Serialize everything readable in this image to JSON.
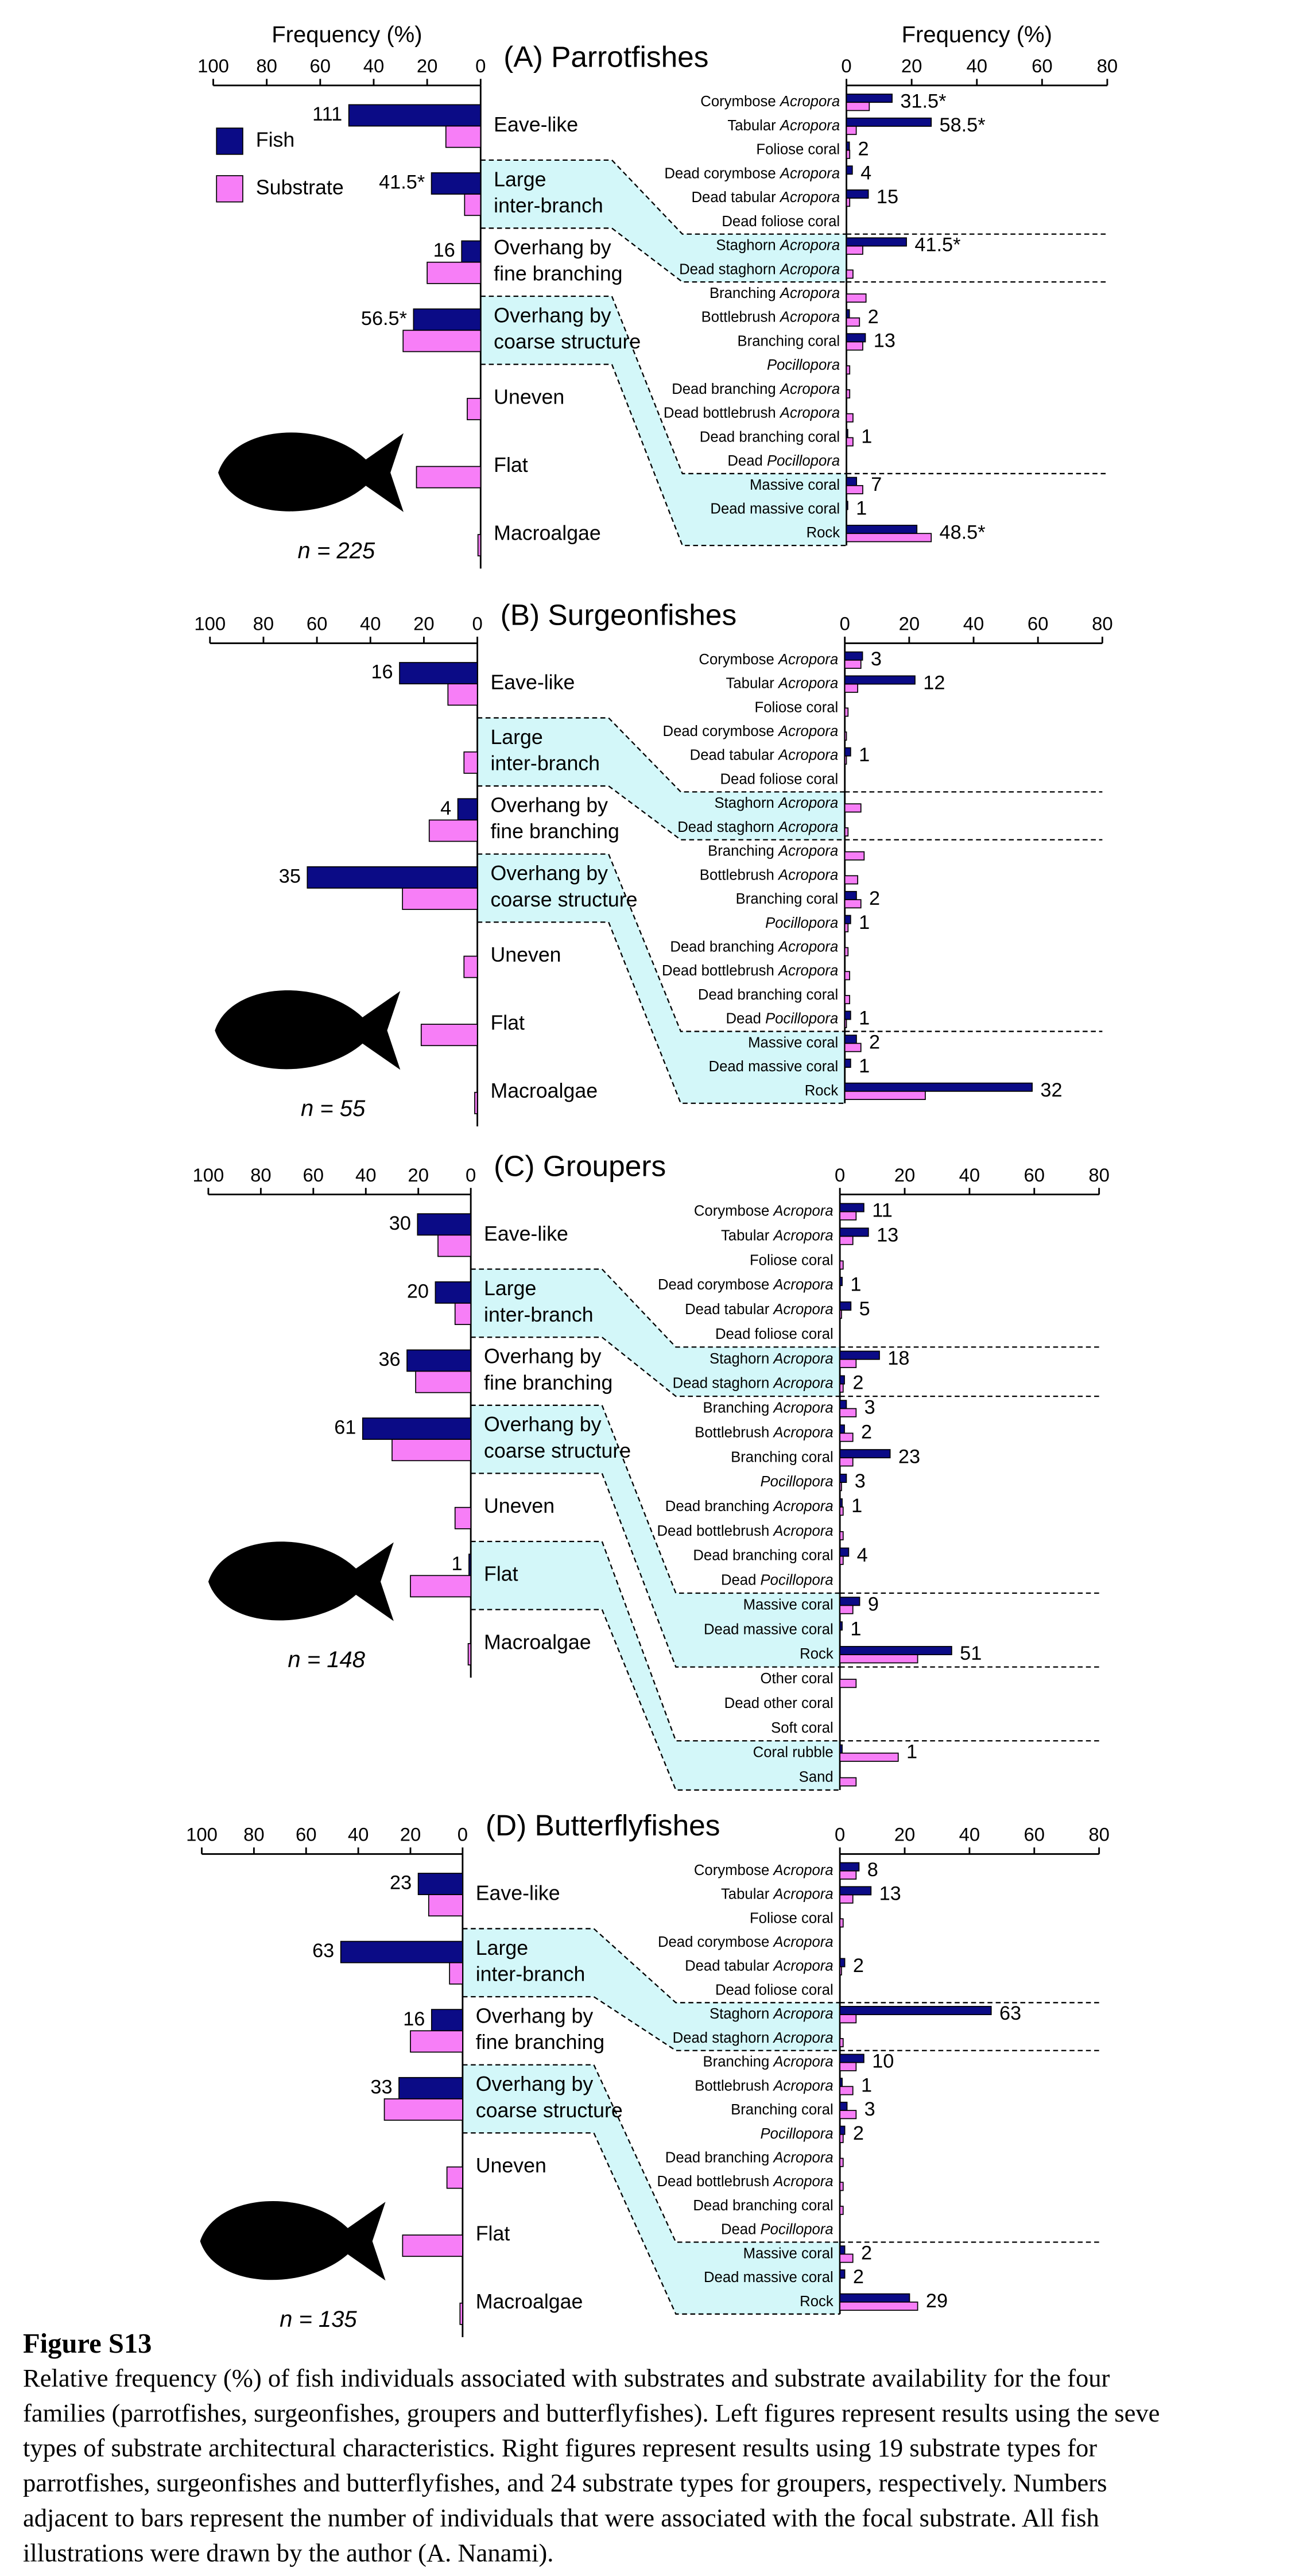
{
  "chart_data": [
    {
      "type": "bar",
      "orientation": "horizontal",
      "title": "(A) Parrotfishes",
      "xlabel": "Frequency (%)",
      "note": "n = 225",
      "legend": "upper left",
      "categories": [
        "Eave-like",
        "Large inter-branch",
        "Overhang by fine branching",
        "Overhang by coarse structure",
        "Uneven",
        "Flat",
        "Macroalgae"
      ],
      "series": [
        {
          "name": "Fish",
          "color": "#0b0b86",
          "values": [
            49.3,
            18.4,
            7.1,
            25.1,
            0,
            0,
            0
          ],
          "bar_labels": [
            "111",
            "41.5*",
            "16",
            "56.5*",
            null,
            null,
            null
          ]
        },
        {
          "name": "Substrate",
          "color": "#f77ef7",
          "values": [
            13,
            6,
            20,
            29,
            5,
            24,
            1
          ]
        }
      ],
      "xlim": [
        100,
        0
      ],
      "xticks": [
        100,
        80,
        60,
        40,
        20,
        0
      ]
    },
    {
      "type": "bar",
      "orientation": "horizontal",
      "xlabel": "Frequency (%)",
      "categories": [
        "Corymbose Acropora",
        "Tabular Acropora",
        "Foliose coral",
        "Dead corymbose Acropora",
        "Dead tabular Acropora",
        "Dead foliose coral",
        "Staghorn Acropora",
        "Dead staghorn Acropora",
        "Branching Acropora",
        "Bottlebrush Acropora",
        "Branching coral",
        "Pocillopora",
        "Dead branching Acropora",
        "Dead bottlebrush Acropora",
        "Dead branching coral",
        "Dead Pocillopora",
        "Massive coral",
        "Dead massive coral",
        "Rock"
      ],
      "series": [
        {
          "color": "#0b0b86",
          "values": [
            14,
            26,
            0.9,
            1.8,
            6.7,
            0,
            18.4,
            0,
            0,
            0.9,
            5.8,
            0,
            0,
            0,
            0.4,
            0,
            3.1,
            0.4,
            21.6
          ],
          "bar_labels": [
            "31.5*",
            "58.5*",
            "2",
            "4",
            "15",
            null,
            "41.5*",
            null,
            null,
            "2",
            "13",
            null,
            null,
            null,
            "1",
            null,
            "7",
            "1",
            "48.5*"
          ]
        },
        {
          "color": "#f77ef7",
          "values": [
            7,
            3,
            1,
            0,
            1,
            0,
            5,
            2,
            6,
            4,
            5,
            1,
            1,
            2,
            2,
            0,
            5,
            0,
            26
          ]
        }
      ],
      "xlim": [
        0,
        80
      ],
      "xticks": [
        0,
        20,
        40,
        60,
        80
      ]
    },
    {
      "type": "bar",
      "orientation": "horizontal",
      "title": "(B) Surgeonfishes",
      "note": "n = 55",
      "categories": [
        "Eave-like",
        "Large inter-branch",
        "Overhang by fine branching",
        "Overhang by coarse structure",
        "Uneven",
        "Flat",
        "Macroalgae"
      ],
      "series": [
        {
          "color": "#0b0b86",
          "values": [
            29.1,
            0,
            7.3,
            63.6,
            0,
            0,
            0
          ],
          "bar_labels": [
            "16",
            null,
            "4",
            "35",
            null,
            null,
            null
          ]
        },
        {
          "color": "#f77ef7",
          "values": [
            11,
            5,
            18,
            28,
            5,
            21,
            1
          ]
        }
      ],
      "xlim": [
        100,
        0
      ],
      "xticks": [
        100,
        80,
        60,
        40,
        20,
        0
      ]
    },
    {
      "type": "bar",
      "orientation": "horizontal",
      "categories": [
        "Corymbose Acropora",
        "Tabular Acropora",
        "Foliose coral",
        "Dead corymbose Acropora",
        "Dead tabular Acropora",
        "Dead foliose coral",
        "Staghorn Acropora",
        "Dead staghorn Acropora",
        "Branching Acropora",
        "Bottlebrush Acropora",
        "Branching coral",
        "Pocillopora",
        "Dead branching Acropora",
        "Dead bottlebrush Acropora",
        "Dead branching coral",
        "Dead Pocillopora",
        "Massive coral",
        "Dead massive coral",
        "Rock"
      ],
      "series": [
        {
          "color": "#0b0b86",
          "values": [
            5.5,
            21.8,
            0,
            0,
            1.8,
            0,
            0,
            0,
            0,
            0,
            3.6,
            1.8,
            0,
            0,
            0,
            1.8,
            3.6,
            1.8,
            58.2
          ],
          "bar_labels": [
            "3",
            "12",
            null,
            null,
            "1",
            null,
            null,
            null,
            null,
            null,
            "2",
            "1",
            null,
            null,
            null,
            "1",
            "2",
            "1",
            "32"
          ]
        },
        {
          "color": "#f77ef7",
          "values": [
            5,
            4,
            1,
            0.5,
            0.5,
            0,
            5,
            1,
            6,
            4,
            5,
            1,
            1,
            1.5,
            1.5,
            0.5,
            5,
            0,
            25
          ]
        }
      ],
      "xlim": [
        0,
        80
      ],
      "xticks": [
        0,
        20,
        40,
        60,
        80
      ]
    },
    {
      "type": "bar",
      "orientation": "horizontal",
      "title": "(C) Groupers",
      "note": "n = 148",
      "categories": [
        "Eave-like",
        "Large inter-branch",
        "Overhang by fine branching",
        "Overhang by coarse structure",
        "Uneven",
        "Flat",
        "Macroalgae"
      ],
      "series": [
        {
          "color": "#0b0b86",
          "values": [
            20.3,
            13.5,
            24.3,
            41.2,
            0,
            0.7,
            0
          ],
          "bar_labels": [
            "30",
            "20",
            "36",
            "61",
            null,
            "1",
            null
          ]
        },
        {
          "color": "#f77ef7",
          "values": [
            12.5,
            6,
            21,
            30,
            6,
            23,
            1
          ]
        }
      ],
      "xlim": [
        100,
        0
      ],
      "xticks": [
        100,
        80,
        60,
        40,
        20,
        0
      ]
    },
    {
      "type": "bar",
      "orientation": "horizontal",
      "categories": [
        "Corymbose Acropora",
        "Tabular Acropora",
        "Foliose coral",
        "Dead corymbose Acropora",
        "Dead tabular Acropora",
        "Dead foliose coral",
        "Staghorn Acropora",
        "Dead staghorn Acropora",
        "Branching Acropora",
        "Bottlebrush Acropora",
        "Branching coral",
        "Pocillopora",
        "Dead branching Acropora",
        "Dead bottlebrush Acropora",
        "Dead branching coral",
        "Dead Pocillopora",
        "Massive coral",
        "Dead massive coral",
        "Rock",
        "Other coral",
        "Dead other coral",
        "Soft coral",
        "Coral rubble",
        "Sand"
      ],
      "series": [
        {
          "color": "#0b0b86",
          "values": [
            7.4,
            8.8,
            0,
            0.7,
            3.4,
            0,
            12.2,
            1.4,
            2.0,
            1.4,
            15.5,
            2.0,
            0.7,
            0,
            2.7,
            0,
            6.1,
            0.7,
            34.5,
            0,
            0,
            0,
            0.7,
            0
          ],
          "bar_labels": [
            "11",
            "13",
            null,
            "1",
            "5",
            null,
            "18",
            "2",
            "3",
            "2",
            "23",
            "3",
            "1",
            null,
            "4",
            null,
            "9",
            "1",
            "51",
            null,
            null,
            null,
            "1",
            null
          ]
        },
        {
          "color": "#f77ef7",
          "values": [
            5,
            4,
            1,
            0,
            0.5,
            0,
            5,
            1,
            5,
            4,
            4,
            0.5,
            1,
            1,
            1,
            0,
            4,
            0,
            24,
            5,
            0,
            0,
            18,
            5
          ]
        }
      ],
      "xlim": [
        0,
        80
      ],
      "xticks": [
        0,
        20,
        40,
        60,
        80
      ]
    },
    {
      "type": "bar",
      "orientation": "horizontal",
      "title": "(D) Butterflyfishes",
      "note": "n = 135",
      "categories": [
        "Eave-like",
        "Large inter-branch",
        "Overhang by fine branching",
        "Overhang by coarse structure",
        "Uneven",
        "Flat",
        "Macroalgae"
      ],
      "series": [
        {
          "color": "#0b0b86",
          "values": [
            17,
            46.7,
            11.9,
            24.4,
            0,
            0,
            0
          ],
          "bar_labels": [
            "23",
            "63",
            "16",
            "33",
            null,
            null,
            null
          ]
        },
        {
          "color": "#f77ef7",
          "values": [
            13,
            5,
            20,
            30,
            6,
            23,
            1
          ]
        }
      ],
      "xlim": [
        100,
        0
      ],
      "xticks": [
        100,
        80,
        60,
        40,
        20,
        0
      ]
    },
    {
      "type": "bar",
      "orientation": "horizontal",
      "categories": [
        "Corymbose Acropora",
        "Tabular Acropora",
        "Foliose coral",
        "Dead corymbose Acropora",
        "Dead tabular Acropora",
        "Dead foliose coral",
        "Staghorn Acropora",
        "Dead staghorn Acropora",
        "Branching Acropora",
        "Bottlebrush Acropora",
        "Branching coral",
        "Pocillopora",
        "Dead branching Acropora",
        "Dead bottlebrush Acropora",
        "Dead branching coral",
        "Dead Pocillopora",
        "Massive coral",
        "Dead massive coral",
        "Rock"
      ],
      "series": [
        {
          "color": "#0b0b86",
          "values": [
            5.9,
            9.6,
            0,
            0,
            1.5,
            0,
            46.7,
            0,
            7.4,
            0.7,
            2.2,
            1.5,
            0,
            0,
            0,
            0,
            1.5,
            1.5,
            21.5
          ],
          "bar_labels": [
            "8",
            "13",
            null,
            null,
            "2",
            null,
            "63",
            null,
            "10",
            "1",
            "3",
            "2",
            null,
            null,
            null,
            null,
            "2",
            "2",
            "29"
          ]
        },
        {
          "color": "#f77ef7",
          "values": [
            5,
            4,
            1,
            0,
            0.5,
            0,
            5,
            1,
            5,
            4,
            5,
            1,
            1,
            1,
            1,
            0,
            4,
            0,
            24
          ]
        }
      ],
      "xlim": [
        0,
        80
      ],
      "xticks": [
        0,
        20,
        40,
        60,
        80
      ]
    }
  ],
  "caption": {
    "label": "Figure S13",
    "lines": [
      "Relative frequency (%) of fish individuals associated with substrates and substrate availability for the four",
      "families (parrotfishes, surgeonfishes, groupers and butterflyfishes). Left figures represent results using the seve",
      "types of substrate architectural characteristics. Right figures represent results using 19 substrate types for",
      "parrotfishes, surgeonfishes and butterflyfishes, and 24 substrate types for groupers, respectively. Numbers",
      "adjacent to bars represent the number of individuals that were associated with the focal substrate. All fish",
      "illustrations were drawn by the author (A. Nanami)."
    ]
  }
}
